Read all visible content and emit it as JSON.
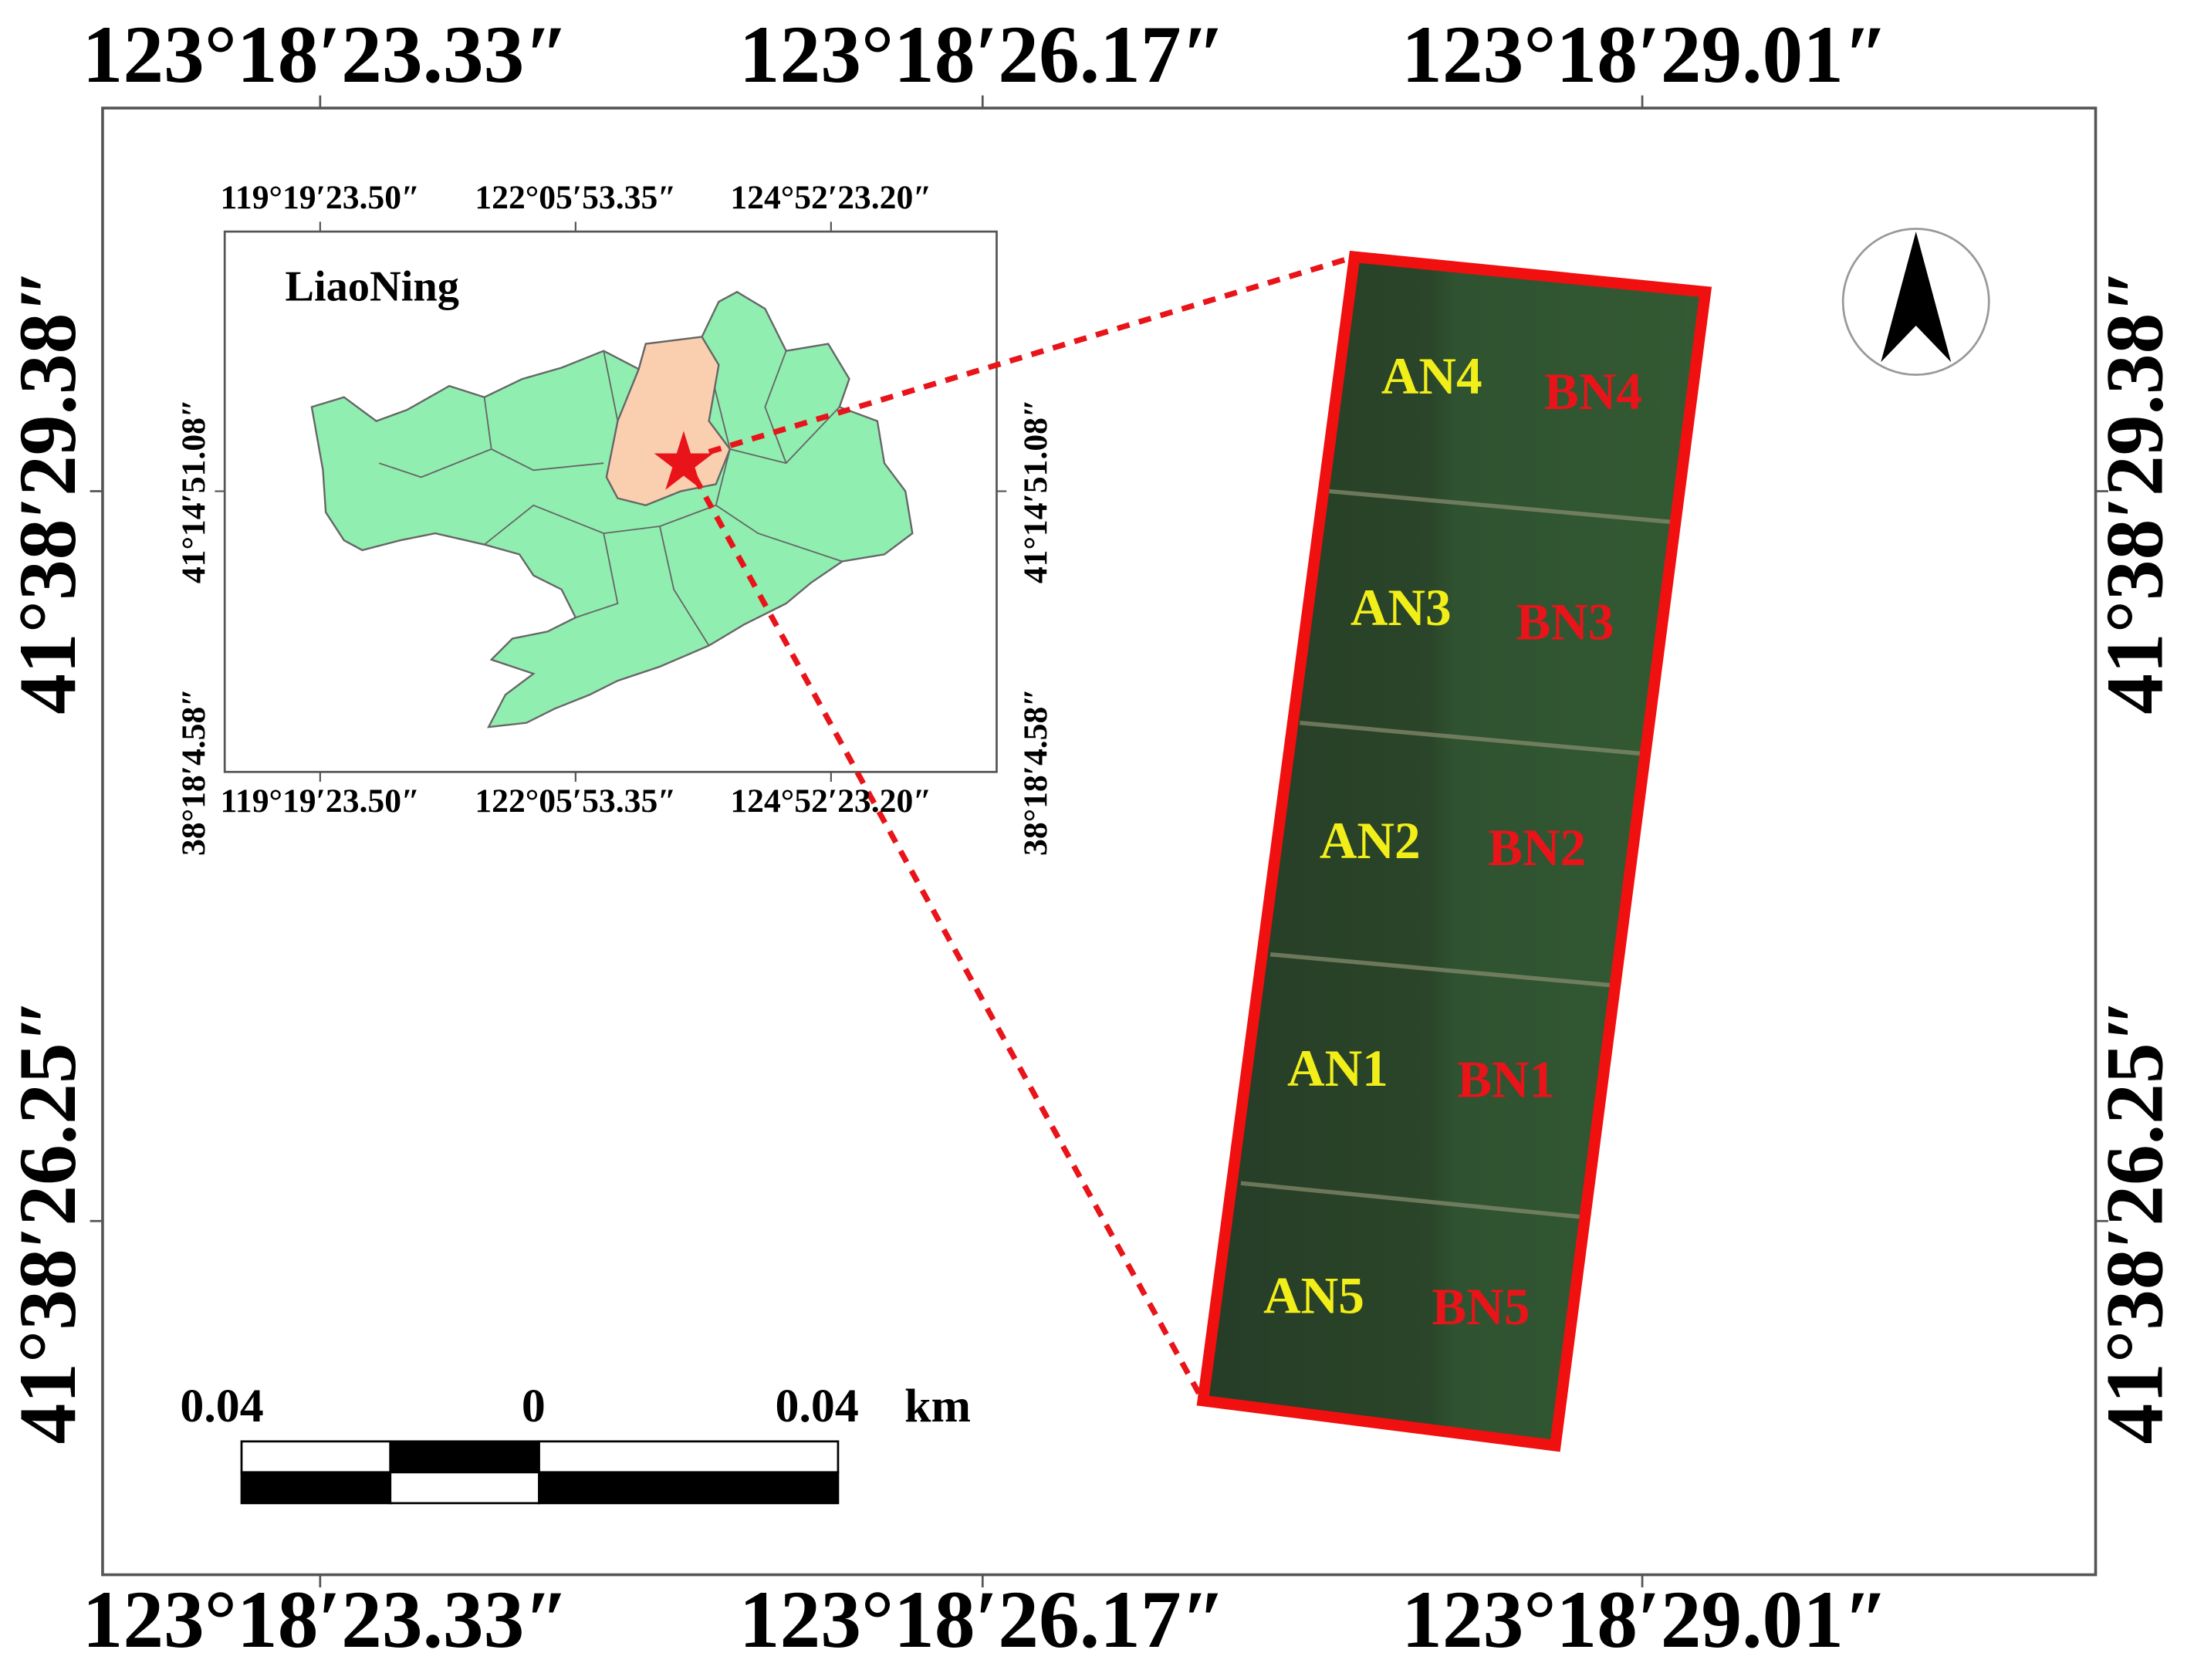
{
  "outer_frame": {
    "top_labels": [
      "123°18′23.33″",
      "123°18′26.17″",
      "123°18′29.01″"
    ],
    "bottom_labels": [
      "123°18′23.33″",
      "123°18′26.17″",
      "123°18′29.01″"
    ],
    "left_labels": [
      "41°38′29.38″",
      "41°38′26.25″"
    ],
    "right_labels": [
      "41°38′29.38″",
      "41°38′26.25″"
    ]
  },
  "inset": {
    "title": "LiaoNing",
    "top_labels": [
      "119°19′23.50″",
      "122°05′53.35″",
      "124°52′23.20″"
    ],
    "bottom_labels": [
      "119°19′23.50″",
      "122°05′53.35″",
      "124°52′23.20″"
    ],
    "left_labels": [
      "41°14′51.08″",
      "38°18′4.58″"
    ],
    "right_labels": [
      "41°14′51.08″",
      "38°18′4.58″"
    ]
  },
  "plots": {
    "a_labels": [
      "AN4",
      "AN3",
      "AN2",
      "AN1",
      "AN5"
    ],
    "b_labels": [
      "BN4",
      "BN3",
      "BN2",
      "BN1",
      "BN5"
    ]
  },
  "scale_bar": {
    "labels": [
      "0.04",
      "0",
      "0.04"
    ],
    "unit": "km"
  }
}
